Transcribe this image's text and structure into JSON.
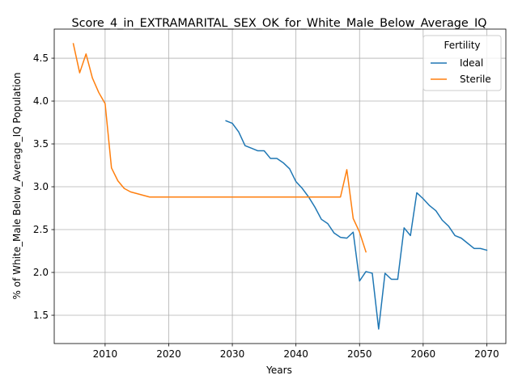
{
  "chart_data": {
    "type": "line",
    "title": "Score_4_in_EXTRAMARITAL_SEX_OK_for_White_Male_Below_Average_IQ",
    "xlabel": "Years",
    "ylabel": "% of White_Male Below_Average_IQ Population",
    "xlim": [
      2002,
      2073
    ],
    "ylim": [
      1.17,
      4.84
    ],
    "xticks": [
      2010,
      2020,
      2030,
      2040,
      2050,
      2060,
      2070
    ],
    "yticks": [
      1.5,
      2.0,
      2.5,
      3.0,
      3.5,
      4.0,
      4.5
    ],
    "grid": true,
    "legend": {
      "title": "Fertility",
      "placement": "top-right"
    },
    "series": [
      {
        "name": "Ideal",
        "color": "#1f77b4",
        "x": [
          2029,
          2030,
          2031,
          2032,
          2033,
          2034,
          2035,
          2036,
          2037,
          2038,
          2039,
          2040,
          2041,
          2042,
          2043,
          2044,
          2045,
          2046,
          2047,
          2048,
          2049,
          2050,
          2051,
          2052,
          2053,
          2054,
          2055,
          2056,
          2057,
          2058,
          2059,
          2060,
          2061,
          2062,
          2063,
          2064,
          2065,
          2066,
          2067,
          2068,
          2069,
          2070
        ],
        "values": [
          3.77,
          3.74,
          3.64,
          3.48,
          3.45,
          3.42,
          3.42,
          3.33,
          3.33,
          3.28,
          3.21,
          3.06,
          2.98,
          2.88,
          2.76,
          2.62,
          2.57,
          2.46,
          2.41,
          2.4,
          2.47,
          1.9,
          2.01,
          1.99,
          1.34,
          1.99,
          1.92,
          1.92,
          2.52,
          2.43,
          2.93,
          2.86,
          2.78,
          2.72,
          2.61,
          2.54,
          2.43,
          2.4,
          2.34,
          2.28,
          2.28,
          2.26
        ]
      },
      {
        "name": "Sterile",
        "color": "#ff7f0e",
        "x": [
          2005,
          2006,
          2007,
          2008,
          2009,
          2010,
          2011,
          2012,
          2013,
          2014,
          2015,
          2016,
          2017,
          2018,
          2019,
          2020,
          2021,
          2022,
          2023,
          2024,
          2025,
          2026,
          2027,
          2028,
          2029,
          2030,
          2031,
          2032,
          2033,
          2034,
          2035,
          2036,
          2037,
          2038,
          2039,
          2040,
          2041,
          2042,
          2043,
          2044,
          2045,
          2046,
          2047,
          2048,
          2049,
          2050,
          2051
        ],
        "values": [
          4.67,
          4.33,
          4.55,
          4.27,
          4.1,
          3.97,
          3.22,
          3.07,
          2.98,
          2.94,
          2.92,
          2.9,
          2.88,
          2.88,
          2.88,
          2.88,
          2.88,
          2.88,
          2.88,
          2.88,
          2.88,
          2.88,
          2.88,
          2.88,
          2.88,
          2.88,
          2.88,
          2.88,
          2.88,
          2.88,
          2.88,
          2.88,
          2.88,
          2.88,
          2.88,
          2.88,
          2.88,
          2.88,
          2.88,
          2.88,
          2.88,
          2.88,
          2.88,
          3.2,
          2.63,
          2.47,
          2.24
        ]
      }
    ]
  }
}
